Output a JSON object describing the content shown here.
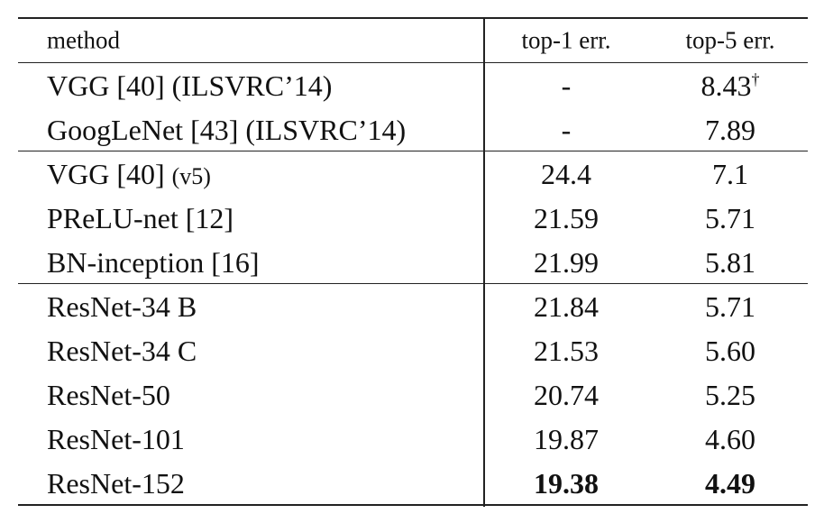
{
  "table": {
    "header": [
      "method",
      "top-1 err.",
      "top-5 err."
    ],
    "groups": [
      [
        {
          "method": "VGG [40] (ILSVRC’14)",
          "top1": "-",
          "top5": "8.43",
          "top5_mark": "†"
        },
        {
          "method": "GoogLeNet [43] (ILSVRC’14)",
          "top1": "-",
          "top5": "7.89"
        }
      ],
      [
        {
          "method": "VGG [40]",
          "note": "(v5)",
          "top1": "24.4",
          "top5": "7.1"
        },
        {
          "method": "PReLU-net [12]",
          "top1": "21.59",
          "top5": "5.71"
        },
        {
          "method": "BN-inception [16]",
          "top1": "21.99",
          "top5": "5.81"
        }
      ],
      [
        {
          "method": "ResNet-34 B",
          "top1": "21.84",
          "top5": "5.71"
        },
        {
          "method": "ResNet-34 C",
          "top1": "21.53",
          "top5": "5.60"
        },
        {
          "method": "ResNet-50",
          "top1": "20.74",
          "top5": "5.25"
        },
        {
          "method": "ResNet-101",
          "top1": "19.87",
          "top5": "4.60"
        },
        {
          "method": "ResNet-152",
          "top1": "19.38",
          "top5": "4.49",
          "bold": true
        }
      ]
    ]
  }
}
